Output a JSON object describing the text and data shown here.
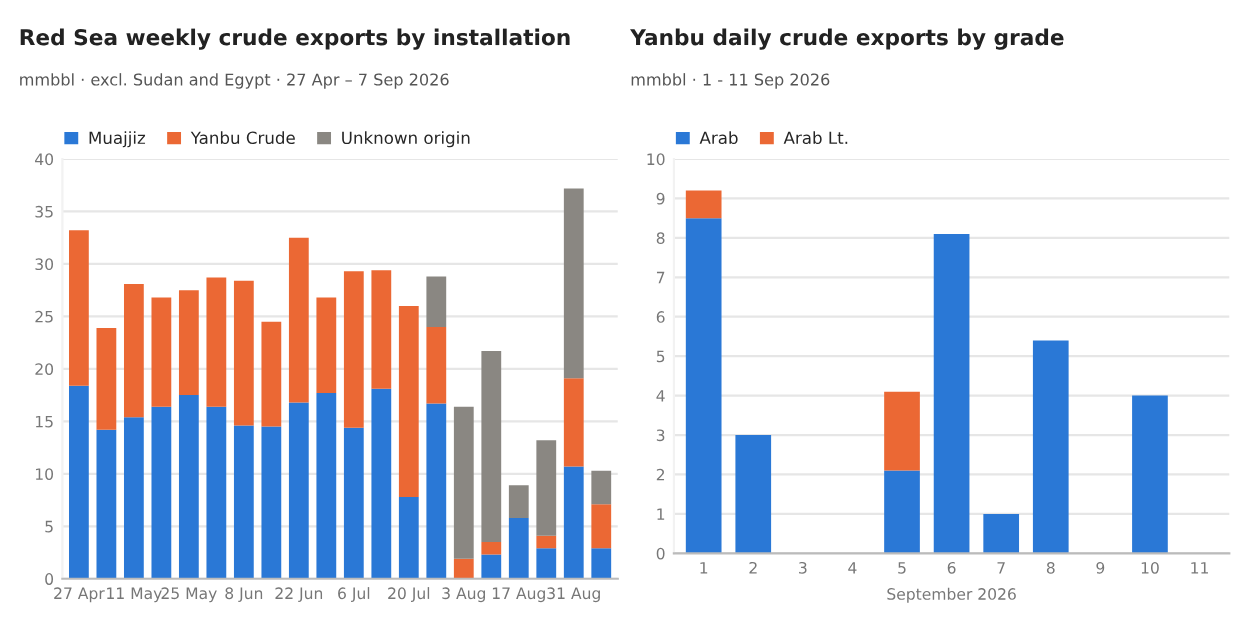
{
  "chart_data": [
    {
      "type": "bar",
      "title": "Red Sea weekly crude exports by installation",
      "subtitle": "mmbbl · excl. Sudan and Egypt · 27 Apr – 7 Sep 2026",
      "categories": [
        "27 Apr",
        null,
        "11 May",
        null,
        "25 May",
        null,
        "8 Jun",
        null,
        "22 Jun",
        null,
        "6 Jul",
        null,
        "20 Jul",
        null,
        "3 Aug",
        null,
        "17 Aug",
        null,
        "31 Aug",
        null
      ],
      "stacked": true,
      "series": [
        {
          "name": "Muajjiz",
          "color": "#2a78d6",
          "values": [
            18.4,
            14.2,
            15.4,
            16.4,
            17.5,
            16.4,
            14.6,
            14.5,
            16.8,
            17.7,
            14.4,
            18.1,
            7.8,
            16.7,
            0,
            2.3,
            5.8,
            2.9,
            10.7,
            2.9
          ]
        },
        {
          "name": "Yanbu Crude",
          "color": "#eb6834",
          "values": [
            14.8,
            9.7,
            12.7,
            10.4,
            10.0,
            12.3,
            13.8,
            10.0,
            15.7,
            9.1,
            14.9,
            11.3,
            18.2,
            7.3,
            1.9,
            1.2,
            0,
            1.2,
            8.4,
            4.2
          ]
        },
        {
          "name": "Unknown origin",
          "color": "#8a8782",
          "values": [
            0,
            0,
            0,
            0,
            0,
            0,
            0,
            0,
            0,
            0,
            0,
            0,
            0,
            4.8,
            14.5,
            18.2,
            3.1,
            9.1,
            18.1,
            3.2
          ]
        }
      ],
      "ylim": [
        0,
        40
      ],
      "yticks": [
        0,
        5,
        10,
        15,
        20,
        25,
        30,
        35,
        40
      ],
      "grid": "y",
      "legend": "top left"
    },
    {
      "type": "bar",
      "title": "Yanbu daily crude exports by grade",
      "subtitle": "mmbbl · 1 - 11 Sep 2026",
      "xlabel": "September 2026",
      "categories": [
        "1",
        "2",
        "3",
        "4",
        "5",
        "6",
        "7",
        "8",
        "9",
        "10",
        "11"
      ],
      "stacked": true,
      "series": [
        {
          "name": "Arab",
          "color": "#2a78d6",
          "values": [
            8.5,
            3.0,
            null,
            null,
            2.1,
            8.1,
            1.0,
            5.4,
            null,
            4.0,
            null
          ]
        },
        {
          "name": "Arab Lt.",
          "color": "#eb6834",
          "values": [
            0.7,
            null,
            null,
            null,
            2.0,
            null,
            null,
            null,
            null,
            null,
            null
          ]
        }
      ],
      "ylim": [
        0,
        10
      ],
      "yticks": [
        0,
        1,
        2,
        3,
        4,
        5,
        6,
        7,
        8,
        9,
        10
      ],
      "grid": "y",
      "legend": "top left"
    }
  ]
}
